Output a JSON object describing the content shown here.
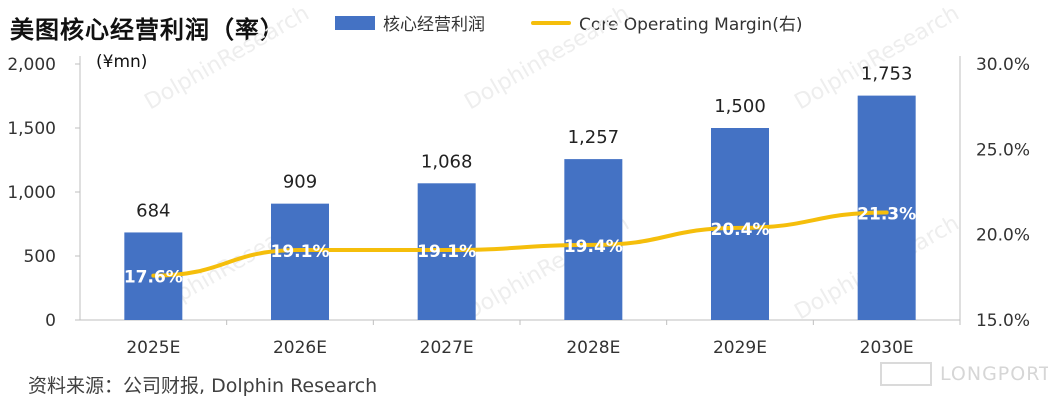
{
  "title": "美图核心经营利润（率）",
  "unit": "(¥mn)",
  "source": "资料来源：公司财报, Dolphin Research",
  "brand_watermark": "LONGPORT",
  "watermark_text": "DolphinResearch",
  "legend": {
    "bar_label": "核心经营利润",
    "line_label": "Core Operating Margin(右)"
  },
  "colors": {
    "bar": "#4472C4",
    "line": "#F5BE0B"
  },
  "chart_data": {
    "type": "bar",
    "title": "美图核心经营利润（率）",
    "categories": [
      "2025E",
      "2026E",
      "2027E",
      "2028E",
      "2029E",
      "2030E"
    ],
    "series": [
      {
        "name": "核心经营利润",
        "type": "bar",
        "axis": "left",
        "values": [
          684,
          909,
          1068,
          1257,
          1500,
          1753
        ],
        "labels": [
          "684",
          "909",
          "1,068",
          "1,257",
          "1,500",
          "1,753"
        ]
      },
      {
        "name": "Core Operating Margin(右)",
        "type": "line",
        "axis": "right",
        "values": [
          17.6,
          19.1,
          19.1,
          19.4,
          20.4,
          21.3
        ],
        "labels": [
          "17.6%",
          "19.1%",
          "19.1%",
          "19.4%",
          "20.4%",
          "21.3%"
        ]
      }
    ],
    "y_left": {
      "range": [
        0,
        2000
      ],
      "ticks": [
        0,
        500,
        1000,
        1500,
        2000
      ],
      "tick_labels": [
        "0",
        "500",
        "1,000",
        "1,500",
        "2,000"
      ]
    },
    "y_right": {
      "range": [
        15,
        30
      ],
      "ticks": [
        15,
        20,
        25,
        30
      ],
      "tick_labels": [
        "15.0%",
        "20.0%",
        "25.0%",
        "30.0%"
      ]
    },
    "grid": false,
    "legend_position": "top"
  }
}
